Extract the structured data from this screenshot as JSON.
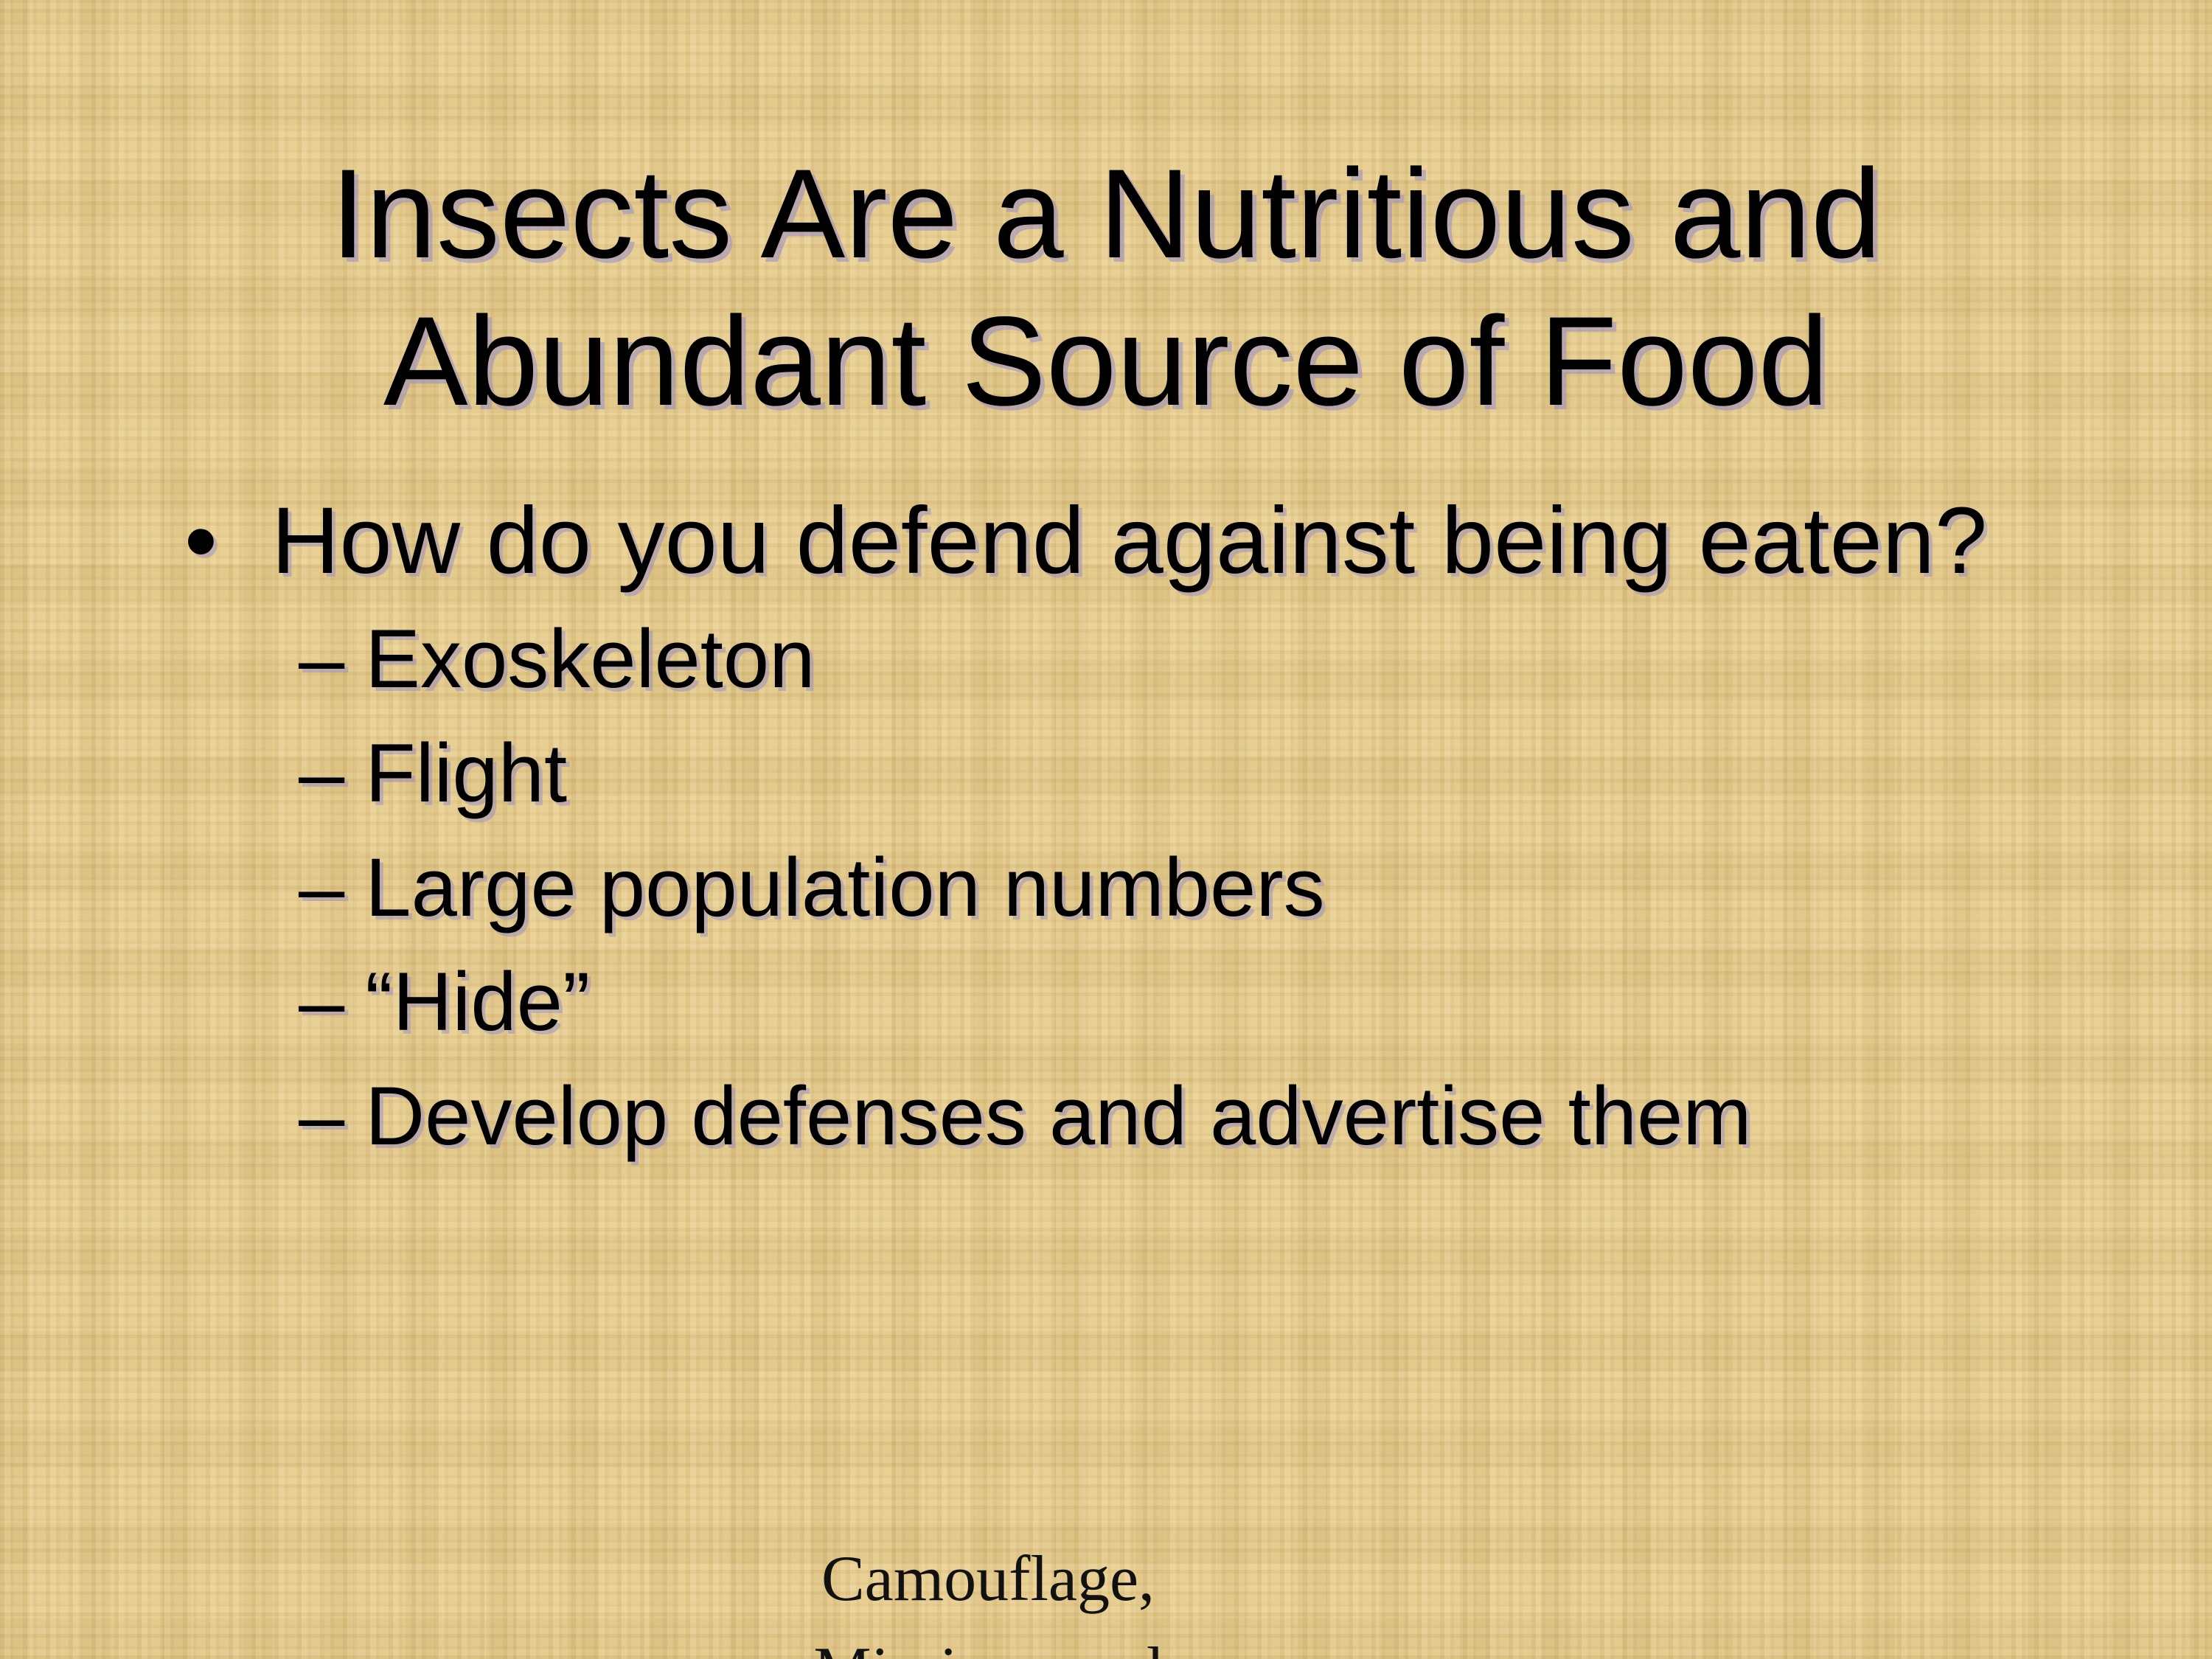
{
  "slide": {
    "title_line1": "Insects Are a Nutritious and",
    "title_line2": "Abundant Source of Food",
    "bullet_symbol": "•",
    "bullet_text": "How do you defend against being eaten?",
    "sub_dash": "–",
    "sub_items": [
      "Exoskeleton",
      "Flight",
      "Large population numbers",
      "“Hide”",
      "Develop defenses and advertise them"
    ],
    "footer_line1": "Camouflage,",
    "footer_line2": "Mimicry, and"
  }
}
